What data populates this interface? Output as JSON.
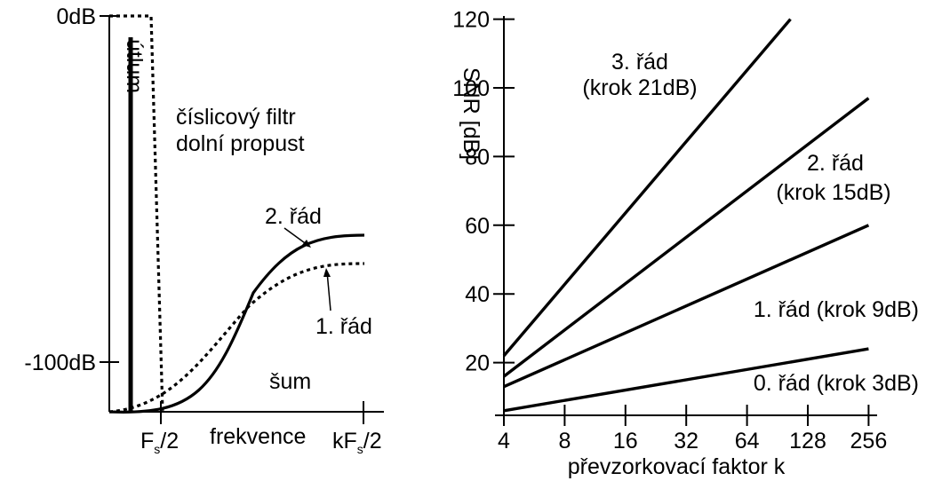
{
  "left_panel": {
    "y_tick_labels": [
      "0dB",
      "-100dB"
    ],
    "y_label": "útlum",
    "x_tick_labels": {
      "fs_half": {
        "base": "F",
        "sub": "s",
        "rest": "/2"
      },
      "kfs_half": {
        "pre": "kF",
        "sub": "s",
        "rest": "/2"
      }
    },
    "x_label": "frekvence",
    "filter_label_line1": "číslicový filtr",
    "filter_label_line2": "dolní propust",
    "label_order2": "2. řád",
    "label_order1": "1. řád",
    "label_noise": "šum"
  },
  "chart_data": {
    "type": "line",
    "xlabel": "převzorkovací faktor k",
    "ylabel": "SNR [dB]",
    "x_scale": "log2",
    "x_ticks": [
      4,
      8,
      16,
      32,
      64,
      128,
      256
    ],
    "y_ticks": [
      20,
      40,
      60,
      80,
      100,
      120
    ],
    "grid": false,
    "series": [
      {
        "name": "0. řád (krok 3dB)",
        "x": [
          4,
          256
        ],
        "y": [
          6,
          24
        ]
      },
      {
        "name": "1. řád (krok 9dB)",
        "x": [
          4,
          256
        ],
        "y": [
          13,
          60
        ]
      },
      {
        "name": "2. řád (krok 15dB)",
        "x": [
          4,
          256
        ],
        "y": [
          16,
          97
        ]
      },
      {
        "name": "3. řád (krok 21dB)",
        "x": [
          4,
          105
        ],
        "y": [
          22,
          120
        ]
      }
    ],
    "series_labels": {
      "s0": "0. řád (krok 3dB)",
      "s1": "1. řád (krok 9dB)",
      "s2a": "2. řád",
      "s2b": "(krok 15dB)",
      "s3a": "3. řád",
      "s3b": "(krok 21dB)"
    }
  }
}
